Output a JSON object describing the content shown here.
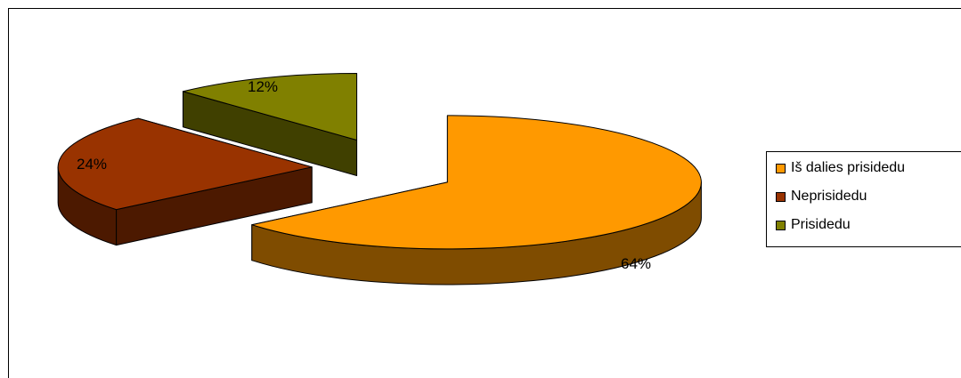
{
  "chart_data": {
    "type": "pie",
    "style": "3d-exploded",
    "slices": [
      {
        "label": "Iš dalies prisidedu",
        "value": 64,
        "data_label": "64%",
        "color": "#ff9900",
        "side_color": "#7f4c00"
      },
      {
        "label": "Neprisidedu",
        "value": 24,
        "data_label": "24%",
        "color": "#993300",
        "side_color": "#4c1900"
      },
      {
        "label": "Prisidedu",
        "value": 12,
        "data_label": "12%",
        "color": "#808000",
        "side_color": "#404000"
      }
    ],
    "legend": {
      "placement": "right",
      "items": [
        "Iš dalies prisidedu",
        "Neprisidedu",
        "Prisidedu"
      ]
    }
  }
}
